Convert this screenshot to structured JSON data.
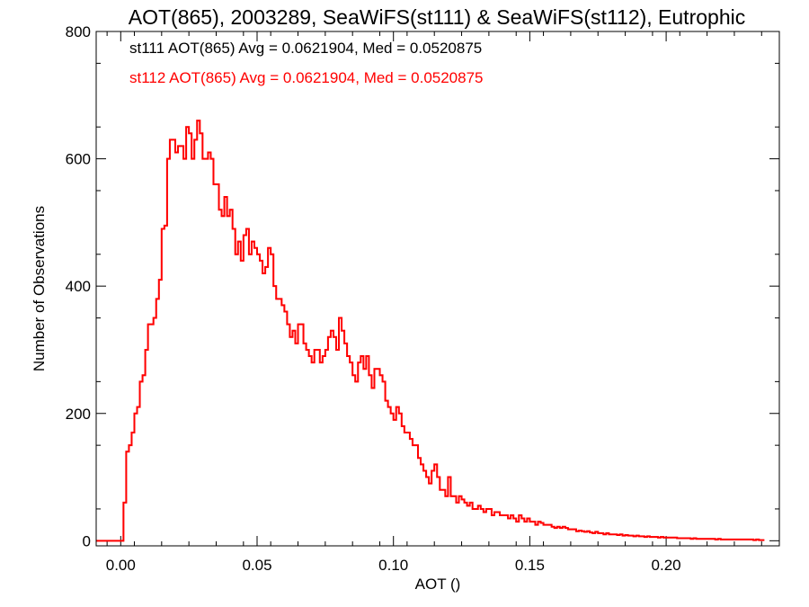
{
  "chart_data": {
    "type": "line",
    "title": "AOT(865), 2003289, SeaWiFS(st111) & SeaWiFS(st112), Eutrophic",
    "xlabel": "AOT ()",
    "ylabel": "Number of Observations",
    "xlim": [
      -0.009,
      0.2415
    ],
    "ylim": [
      -8,
      800
    ],
    "x_ticks": [
      0.0,
      0.05,
      0.1,
      0.15,
      0.2
    ],
    "x_tick_labels": [
      "0.00",
      "0.05",
      "0.10",
      "0.15",
      "0.20"
    ],
    "y_ticks": [
      0,
      200,
      400,
      600,
      800
    ],
    "y_tick_labels": [
      "0",
      "200",
      "400",
      "600",
      "800"
    ],
    "step_style": "histogram",
    "bin_width": 0.001,
    "legend_placement": "top-left",
    "annotations": [
      {
        "text": "st111 AOT(865) Avg = 0.0621904, Med = 0.0520875",
        "color": "#000000"
      },
      {
        "text": "st112 AOT(865) Avg = 0.0621904, Med = 0.0520875",
        "color": "#ff0000"
      }
    ],
    "series": [
      {
        "name": "st111",
        "color": "#ff0000",
        "note": "identical to st112; drawn underneath",
        "x_start": -0.009,
        "values": [
          0,
          0,
          0,
          0,
          0,
          0,
          0,
          0,
          0,
          0,
          60,
          140,
          150,
          170,
          200,
          210,
          250,
          260,
          300,
          340,
          340,
          350,
          380,
          410,
          490,
          495,
          600,
          630,
          630,
          610,
          620,
          620,
          600,
          650,
          640,
          600,
          630,
          660,
          640,
          600,
          600,
          610,
          600,
          560,
          560,
          520,
          510,
          540,
          510,
          520,
          490,
          450,
          470,
          440,
          480,
          490,
          450,
          470,
          460,
          450,
          440,
          420,
          430,
          460,
          450,
          400,
          380,
          380,
          370,
          360,
          340,
          320,
          330,
          310,
          340,
          340,
          310,
          300,
          290,
          280,
          300,
          300,
          280,
          290,
          300,
          320,
          330,
          320,
          300,
          350,
          330,
          310,
          290,
          280,
          260,
          250,
          280,
          290,
          270,
          290,
          260,
          240,
          270,
          270,
          260,
          250,
          220,
          210,
          200,
          190,
          210,
          200,
          180,
          170,
          170,
          160,
          150,
          150,
          130,
          120,
          110,
          100,
          90,
          110,
          120,
          100,
          80,
          80,
          70,
          100,
          70,
          70,
          60,
          70,
          65,
          60,
          55,
          60,
          50,
          50,
          55,
          50,
          45,
          50,
          50,
          40,
          45,
          45,
          40,
          40,
          40,
          35,
          40,
          35,
          30,
          40,
          35,
          30,
          35,
          30,
          30,
          25,
          30,
          28,
          25,
          25,
          25,
          22,
          20,
          22,
          20,
          22,
          20,
          18,
          18,
          18,
          15,
          16,
          15,
          14,
          15,
          13,
          12,
          14,
          12,
          12,
          10,
          12,
          10,
          10,
          10,
          9,
          10,
          8,
          9,
          8,
          8,
          7,
          8,
          7,
          7,
          6,
          7,
          6,
          6,
          6,
          5,
          6,
          5,
          5,
          5,
          5,
          5,
          4,
          4,
          4,
          4,
          4,
          3,
          4,
          3,
          3,
          3,
          3,
          3,
          3,
          3,
          2,
          3,
          2,
          2,
          2,
          2,
          2,
          2,
          2,
          2,
          2,
          2,
          2,
          2,
          1,
          2,
          1,
          1
        ]
      },
      {
        "name": "st112",
        "color": "#ff0000",
        "x_start": -0.009,
        "values": [
          0,
          0,
          0,
          0,
          0,
          0,
          0,
          0,
          0,
          0,
          60,
          140,
          150,
          170,
          200,
          210,
          250,
          260,
          300,
          340,
          340,
          350,
          380,
          410,
          490,
          495,
          600,
          630,
          630,
          610,
          620,
          620,
          600,
          650,
          640,
          600,
          630,
          660,
          640,
          600,
          600,
          610,
          600,
          560,
          560,
          520,
          510,
          540,
          510,
          520,
          490,
          450,
          470,
          440,
          480,
          490,
          450,
          470,
          460,
          450,
          440,
          420,
          430,
          460,
          450,
          400,
          380,
          380,
          370,
          360,
          340,
          320,
          330,
          310,
          340,
          340,
          310,
          300,
          290,
          280,
          300,
          300,
          280,
          290,
          300,
          320,
          330,
          320,
          300,
          350,
          330,
          310,
          290,
          280,
          260,
          250,
          280,
          290,
          270,
          290,
          260,
          240,
          270,
          270,
          260,
          250,
          220,
          210,
          200,
          190,
          210,
          200,
          180,
          170,
          170,
          160,
          150,
          150,
          130,
          120,
          110,
          100,
          90,
          110,
          120,
          100,
          80,
          80,
          70,
          100,
          70,
          70,
          60,
          70,
          65,
          60,
          55,
          60,
          50,
          50,
          55,
          50,
          45,
          50,
          50,
          40,
          45,
          45,
          40,
          40,
          40,
          35,
          40,
          35,
          30,
          40,
          35,
          30,
          35,
          30,
          30,
          25,
          30,
          28,
          25,
          25,
          25,
          22,
          20,
          22,
          20,
          22,
          20,
          18,
          18,
          18,
          15,
          16,
          15,
          14,
          15,
          13,
          12,
          14,
          12,
          12,
          10,
          12,
          10,
          10,
          10,
          9,
          10,
          8,
          9,
          8,
          8,
          7,
          8,
          7,
          7,
          6,
          7,
          6,
          6,
          6,
          5,
          6,
          5,
          5,
          5,
          5,
          5,
          4,
          4,
          4,
          4,
          4,
          3,
          4,
          3,
          3,
          3,
          3,
          3,
          3,
          3,
          2,
          3,
          2,
          2,
          2,
          2,
          2,
          2,
          2,
          2,
          2,
          2,
          2,
          2,
          1,
          2,
          1,
          1
        ]
      }
    ]
  }
}
